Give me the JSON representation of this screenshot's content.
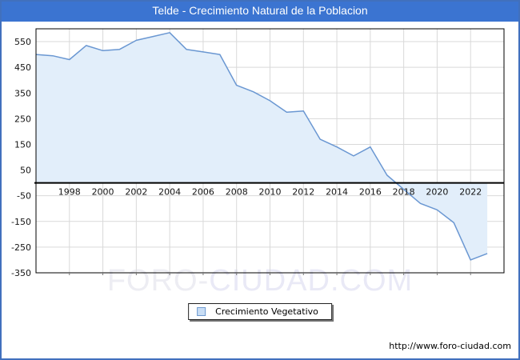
{
  "title_bar": {
    "title": "Telde - Crecimiento Natural de la Poblacion"
  },
  "colors": {
    "title_bar_bg": "#3b74d1",
    "image_border": "#4170bd",
    "line": "#6a97d2",
    "fill": "#e2eefa",
    "grid": "#d9d9d9",
    "axis": "#000000",
    "legend_swatch_fill": "#c9def5",
    "legend_swatch_border": "#6f9ad0",
    "watermark": "#ededf3"
  },
  "chart_data": {
    "type": "area",
    "title": "Telde - Crecimiento Natural de la Poblacion",
    "xlabel": "",
    "ylabel": "",
    "series": [
      {
        "name": "Crecimiento Vegetativo",
        "x": [
          1996,
          1997,
          1998,
          1999,
          2000,
          2001,
          2002,
          2003,
          2004,
          2005,
          2006,
          2007,
          2008,
          2009,
          2010,
          2011,
          2012,
          2013,
          2014,
          2015,
          2016,
          2017,
          2018,
          2019,
          2020,
          2021,
          2022,
          2023
        ],
        "values": [
          500,
          495,
          480,
          535,
          515,
          520,
          555,
          570,
          585,
          520,
          510,
          500,
          380,
          355,
          320,
          275,
          280,
          170,
          140,
          105,
          140,
          30,
          -25,
          -80,
          -105,
          -155,
          -300,
          -275
        ]
      }
    ],
    "xlim": [
      1996,
      2024
    ],
    "ylim": [
      -350,
      600
    ],
    "x_ticks": [
      1998,
      2000,
      2002,
      2004,
      2006,
      2008,
      2010,
      2012,
      2014,
      2016,
      2018,
      2020,
      2022
    ],
    "y_ticks": [
      550,
      450,
      350,
      250,
      150,
      50,
      -50,
      -150,
      -250,
      -350
    ],
    "grid": true,
    "zero_axis": true,
    "legend_position": "bottom-center"
  },
  "legend": {
    "label": "Crecimiento Vegetativo"
  },
  "watermark": {
    "part1": "FORO-",
    "part2": "CIUDAD.COM"
  },
  "footer": {
    "url": "http://www.foro-ciudad.com"
  }
}
